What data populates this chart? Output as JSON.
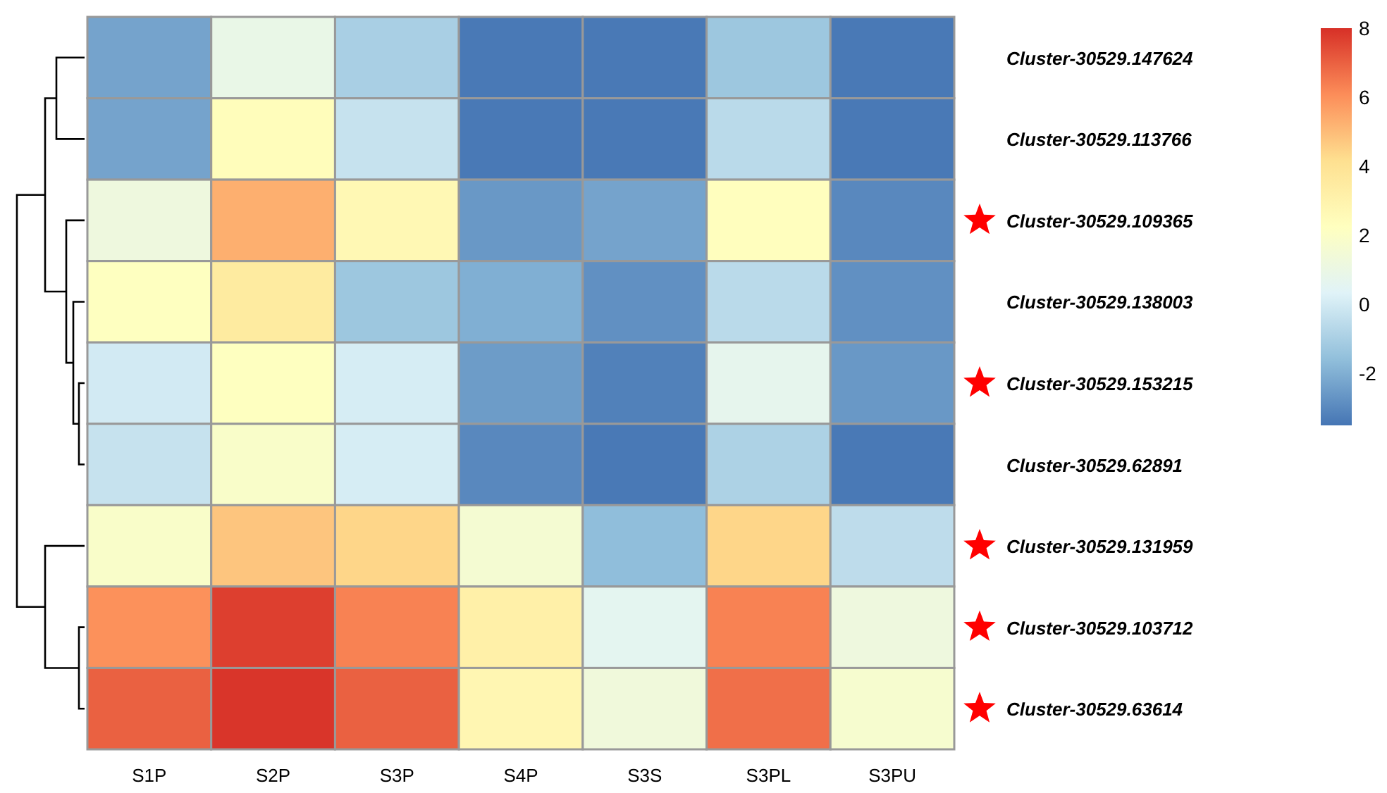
{
  "chart_data": {
    "type": "heatmap",
    "categories": [
      "S1P",
      "S2P",
      "S3P",
      "S4P",
      "S3S",
      "S3PL",
      "S3PU"
    ],
    "y_categories": [
      "Cluster-30529.147624",
      "Cluster-30529.113766",
      "Cluster-30529.109365",
      "Cluster-30529.138003",
      "Cluster-30529.153215",
      "Cluster-30529.62891",
      "Cluster-30529.131959",
      "Cluster-30529.103712",
      "Cluster-30529.63614"
    ],
    "cells": [
      [
        -2.3,
        0.9,
        -1.0,
        -3.4,
        -3.4,
        -1.3,
        -3.4
      ],
      [
        -2.3,
        2.4,
        -0.3,
        -3.4,
        -3.4,
        -0.6,
        -3.4
      ],
      [
        1.2,
        5.3,
        2.7,
        -2.6,
        -2.3,
        2.3,
        -3.0
      ],
      [
        2.2,
        3.5,
        -1.3,
        -2.0,
        -2.8,
        -0.6,
        -2.8
      ],
      [
        0.0,
        2.2,
        0.1,
        -2.5,
        -3.2,
        0.7,
        -2.6
      ],
      [
        -0.3,
        1.9,
        0.1,
        -3.0,
        -3.4,
        -0.9,
        -3.4
      ],
      [
        1.9,
        4.8,
        4.4,
        1.6,
        -1.6,
        4.4,
        -0.5
      ],
      [
        6.0,
        7.7,
        6.3,
        3.2,
        0.6,
        6.3,
        1.2
      ],
      [
        7.0,
        7.9,
        7.0,
        2.8,
        1.3,
        6.7,
        1.7
      ]
    ],
    "clim": [
      -3.5,
      8
    ],
    "cticks": [
      -2,
      0,
      2,
      4,
      6,
      8
    ]
  }
}
